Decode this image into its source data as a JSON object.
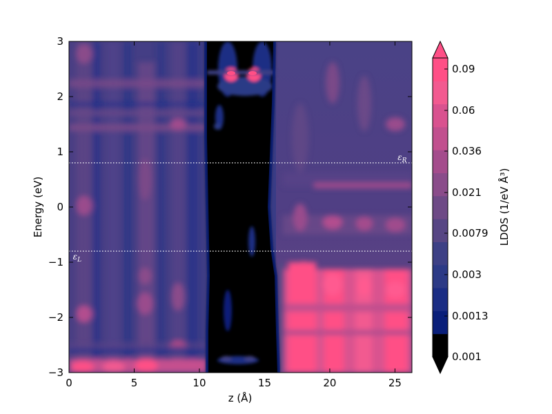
{
  "chart_data": {
    "type": "heatmap",
    "xlabel": "z (Å)",
    "ylabel": "Energy (eV)",
    "xlim": [
      0,
      26.3
    ],
    "ylim": [
      -3,
      3
    ],
    "x_ticks": [
      0,
      5,
      10,
      15,
      20,
      25
    ],
    "x_tick_labels": [
      "0",
      "5",
      "10",
      "15",
      "20",
      "25"
    ],
    "y_ticks": [
      -3,
      -2,
      -1,
      0,
      1,
      2,
      3
    ],
    "y_tick_labels": [
      "−3",
      "−2",
      "−1",
      "0",
      "1",
      "2",
      "3"
    ],
    "grid": false,
    "colorbar": {
      "label": "LDOS (1/eV Å³)",
      "scale": "log",
      "extend": "both",
      "tick_values": [
        0.001,
        0.0013,
        0.003,
        0.0079,
        0.021,
        0.036,
        0.06,
        0.09
      ],
      "tick_labels": [
        "0.001",
        "0.0013",
        "0.003",
        "0.0079",
        "0.021",
        "0.036",
        "0.06",
        "0.09"
      ],
      "colors": [
        "#000000",
        "#0a1f7a",
        "#1b2d84",
        "#2c3a86",
        "#3d4085",
        "#574684",
        "#6e4a86",
        "#8a4c8a",
        "#a44c8c",
        "#c1508e",
        "#d9528f",
        "#f25a90",
        "#ff4f86"
      ]
    },
    "series": [
      {
        "name": "",
        "style": "white dotted horizontal line",
        "y": 0.8
      },
      {
        "name": "",
        "style": "white dotted horizontal line",
        "y": -0.8
      }
    ],
    "annotations": [
      {
        "text": "ε_R",
        "x": 25.2,
        "y": 0.8
      },
      {
        "text": "ε_L",
        "x": 0.3,
        "y": -0.8
      }
    ]
  }
}
